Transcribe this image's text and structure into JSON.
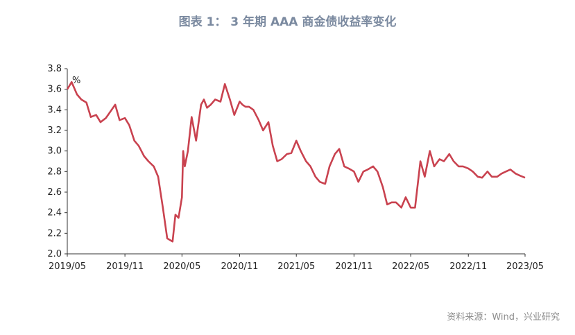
{
  "chart_data": {
    "type": "line",
    "title": "图表 1： 3 年期 AAA 商金债收益率变化",
    "unit_label": "%",
    "source": "资料来源：Wind，兴业研究",
    "xlabel": "",
    "ylabel": "",
    "ylim": [
      2.0,
      3.8
    ],
    "yticks": [
      "2.0",
      "2.2",
      "2.4",
      "2.6",
      "2.8",
      "3.0",
      "3.2",
      "3.4",
      "3.6",
      "3.8"
    ],
    "xticks": [
      "2019/05",
      "2019/11",
      "2020/05",
      "2020/11",
      "2021/05",
      "2021/11",
      "2022/05",
      "2022/11",
      "2023/05"
    ],
    "grid": false,
    "legend": "none",
    "line_color": "#c9424f",
    "series": [
      {
        "x": [
          "2019/05/01",
          "2019/05/15",
          "2019/06/01",
          "2019/06/15",
          "2019/07/01",
          "2019/07/15",
          "2019/08/01",
          "2019/08/15",
          "2019/09/01",
          "2019/09/15",
          "2019/10/01",
          "2019/10/15",
          "2019/11/01",
          "2019/11/15",
          "2019/12/01",
          "2019/12/15",
          "2020/01/01",
          "2020/01/15",
          "2020/02/01",
          "2020/02/15",
          "2020/03/01",
          "2020/03/15",
          "2020/04/01",
          "2020/04/10",
          "2020/04/20",
          "2020/05/01",
          "2020/05/05",
          "2020/05/10",
          "2020/05/20",
          "2020/06/01",
          "2020/06/15",
          "2020/07/01",
          "2020/07/10",
          "2020/07/20",
          "2020/08/01",
          "2020/08/15",
          "2020/09/01",
          "2020/09/15",
          "2020/10/01",
          "2020/10/15",
          "2020/11/01",
          "2020/11/10",
          "2020/11/20",
          "2020/12/01",
          "2020/12/15",
          "2021/01/01",
          "2021/01/15",
          "2021/02/01",
          "2021/02/15",
          "2021/03/01",
          "2021/03/15",
          "2021/04/01",
          "2021/04/15",
          "2021/05/01",
          "2021/05/15",
          "2021/06/01",
          "2021/06/15",
          "2021/07/01",
          "2021/07/15",
          "2021/08/01",
          "2021/08/15",
          "2021/09/01",
          "2021/09/15",
          "2021/10/01",
          "2021/10/15",
          "2021/11/01",
          "2021/11/15",
          "2021/12/01",
          "2021/12/15",
          "2022/01/01",
          "2022/01/15",
          "2022/02/01",
          "2022/02/15",
          "2022/03/01",
          "2022/03/15",
          "2022/04/01",
          "2022/04/15",
          "2022/05/01",
          "2022/05/15",
          "2022/06/01",
          "2022/06/15",
          "2022/07/01",
          "2022/07/15",
          "2022/08/01",
          "2022/08/15",
          "2022/09/01",
          "2022/09/15",
          "2022/10/01",
          "2022/10/15",
          "2022/11/01",
          "2022/11/15",
          "2022/12/01",
          "2022/12/15",
          "2023/01/01",
          "2023/01/15",
          "2023/02/01",
          "2023/02/15",
          "2023/03/01",
          "2023/03/15",
          "2023/04/01",
          "2023/04/15",
          "2023/05/01"
        ],
        "y": [
          3.6,
          3.67,
          3.55,
          3.5,
          3.47,
          3.33,
          3.35,
          3.28,
          3.32,
          3.38,
          3.45,
          3.3,
          3.32,
          3.25,
          3.1,
          3.05,
          2.95,
          2.9,
          2.85,
          2.75,
          2.45,
          2.15,
          2.12,
          2.38,
          2.35,
          2.55,
          3.0,
          2.85,
          3.0,
          3.33,
          3.1,
          3.45,
          3.5,
          3.42,
          3.45,
          3.5,
          3.48,
          3.65,
          3.5,
          3.35,
          3.48,
          3.45,
          3.43,
          3.43,
          3.4,
          3.3,
          3.2,
          3.28,
          3.05,
          2.9,
          2.92,
          2.97,
          2.98,
          3.1,
          3.0,
          2.9,
          2.85,
          2.75,
          2.7,
          2.68,
          2.85,
          2.97,
          3.02,
          2.85,
          2.83,
          2.8,
          2.7,
          2.8,
          2.82,
          2.85,
          2.8,
          2.65,
          2.48,
          2.5,
          2.5,
          2.45,
          2.55,
          2.45,
          2.45,
          2.9,
          2.75,
          3.0,
          2.85,
          2.92,
          2.9,
          2.97,
          2.9,
          2.85,
          2.85,
          2.83,
          2.8,
          2.75,
          2.74,
          2.8,
          2.75,
          2.75,
          2.78,
          2.8,
          2.82,
          2.78,
          2.76,
          2.74
        ]
      }
    ]
  }
}
